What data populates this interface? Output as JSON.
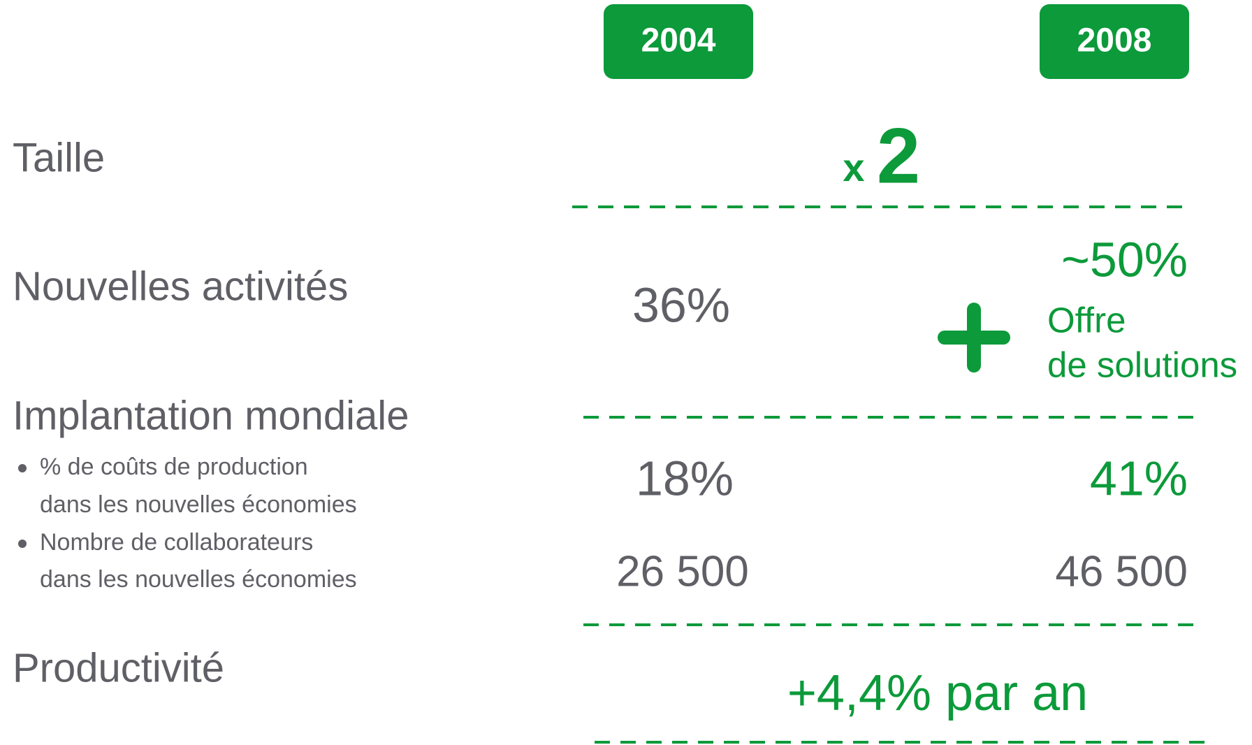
{
  "header": {
    "years": [
      "2004",
      "2008"
    ]
  },
  "rows": [
    {
      "label": "Taille",
      "multiplier": {
        "sign": "x",
        "value": "2"
      }
    },
    {
      "label": "Nouvelles activités",
      "value_2004": "36%",
      "value_2008": "~50%",
      "plus_note": [
        "Offre",
        "de solutions"
      ]
    },
    {
      "label": "Implantation mondiale",
      "items": [
        {
          "lines": [
            "% de coûts de production",
            "dans les nouvelles économies"
          ],
          "value_2004": "18%",
          "value_2008": "41%"
        },
        {
          "lines": [
            "Nombre de collaborateurs",
            "dans les nouvelles économies"
          ],
          "value_2004": "26 500",
          "value_2008": "46 500"
        }
      ]
    },
    {
      "label": "Productivité",
      "combined": "+4,4% par an"
    }
  ]
}
